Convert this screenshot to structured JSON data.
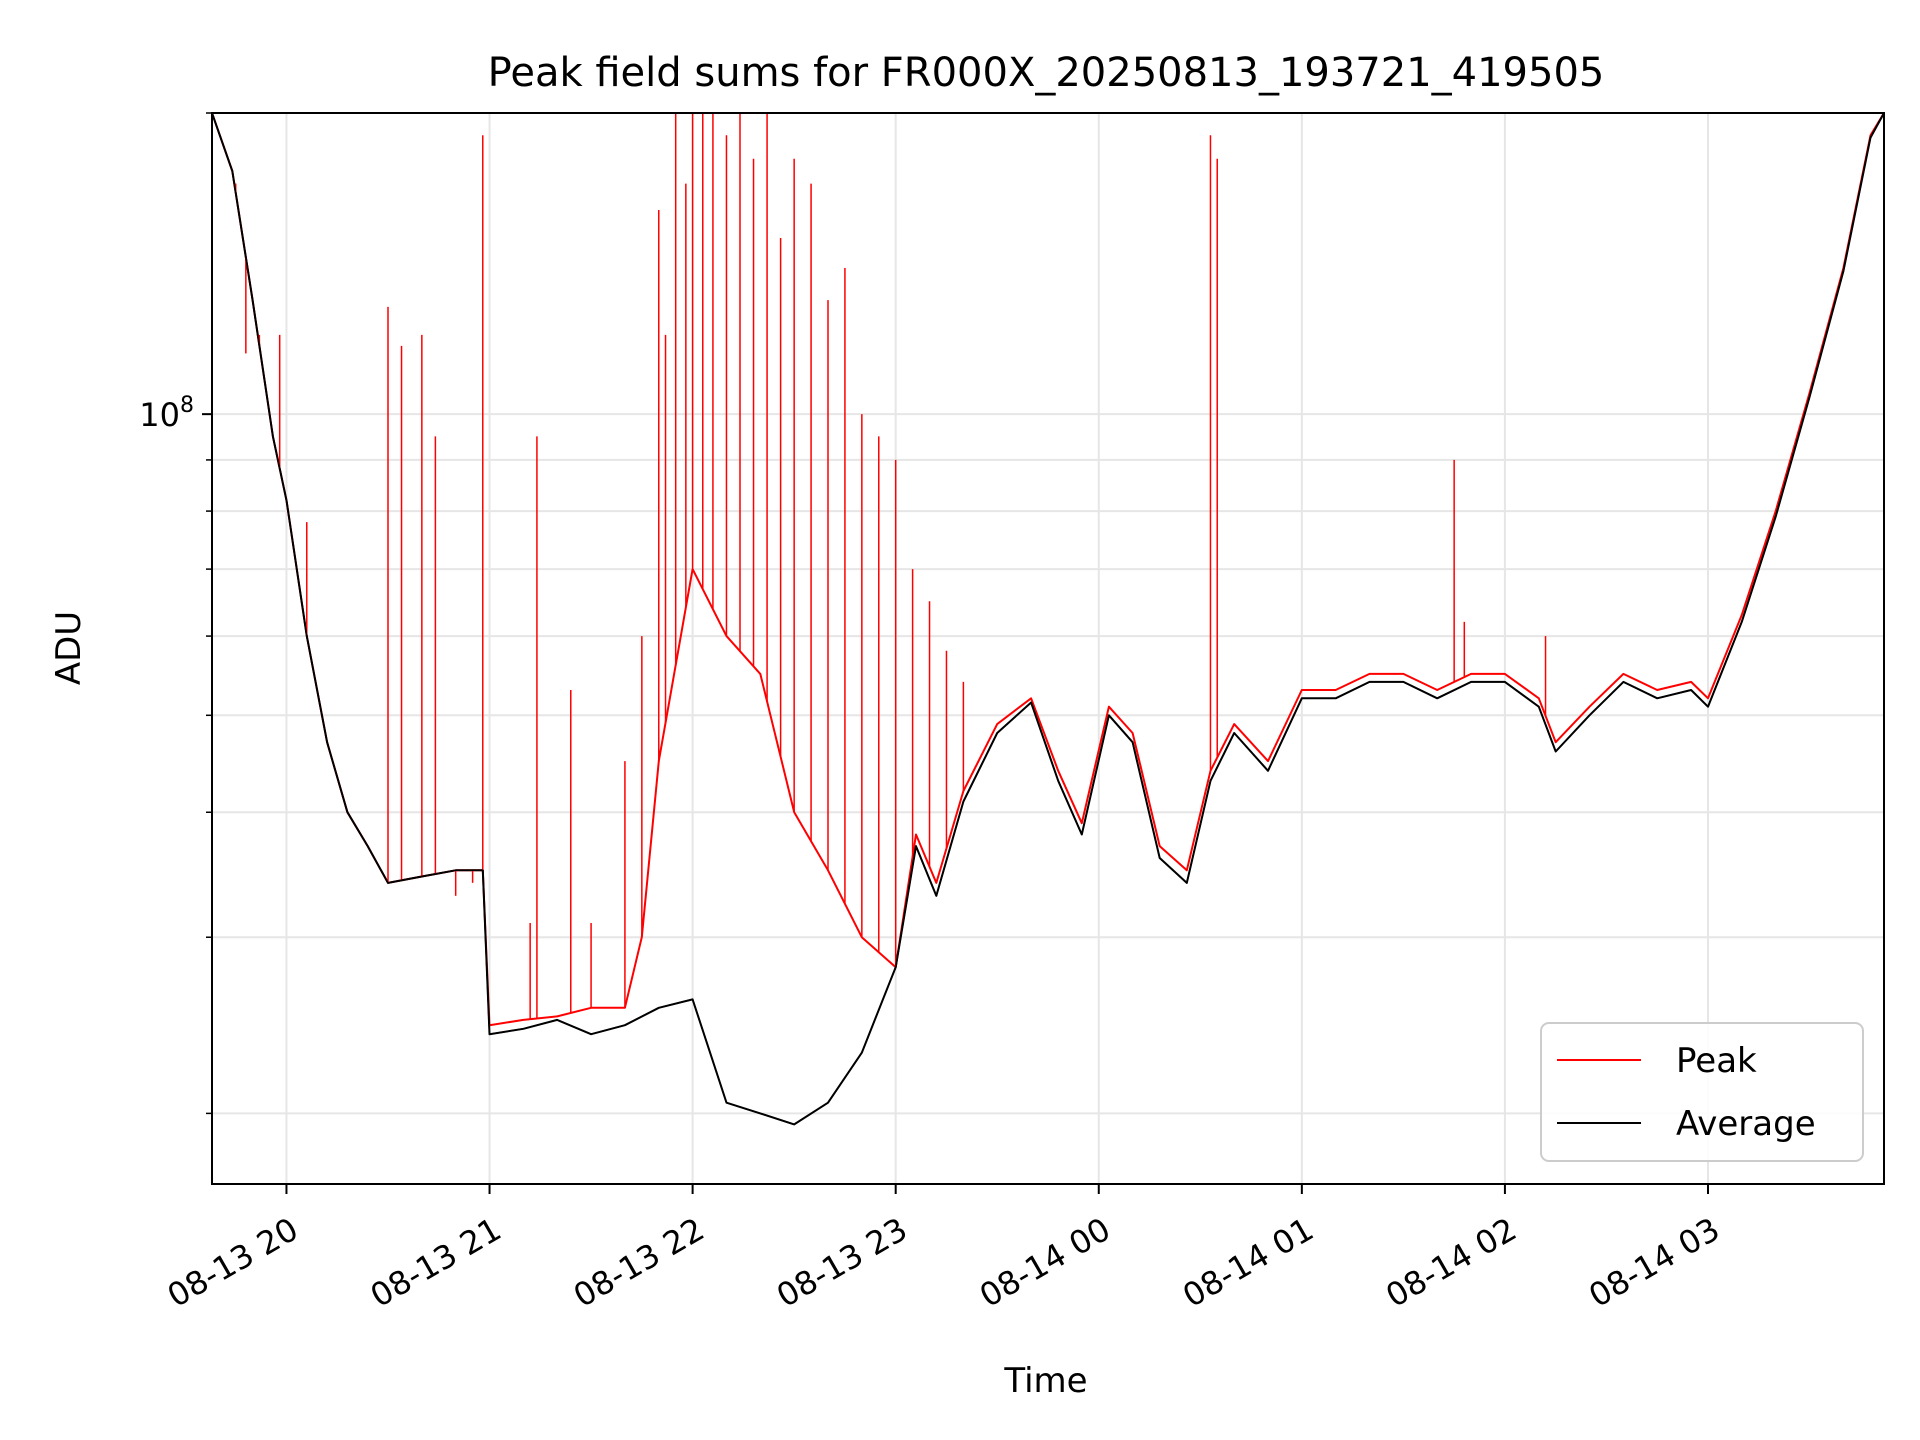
{
  "chart_data": {
    "type": "line",
    "title": "Peak field sums for FR000X_20250813_193721_419505",
    "xlabel": "Time",
    "ylabel": "ADU",
    "yscale": "log",
    "x_tick_labels": [
      "08-13 20",
      "08-13 21",
      "08-13 22",
      "08-13 23",
      "08-14 00",
      "08-14 01",
      "08-14 02",
      "08-14 03"
    ],
    "y_tick_labels": [
      {
        "base": "10",
        "exp": "8"
      }
    ],
    "xlim": [
      "2025-08-13 19:38",
      "2025-08-14 03:52"
    ],
    "ylim": [
      17000000,
      200000000
    ],
    "grid": true,
    "legend": "lower-right",
    "series": [
      {
        "name": "Peak",
        "color": "#ff0000",
        "x": [
          "2025-08-13 19:38",
          "2025-08-13 19:44",
          "2025-08-13 19:50",
          "2025-08-13 19:56",
          "2025-08-13 20:00",
          "2025-08-13 20:06",
          "2025-08-13 20:12",
          "2025-08-13 20:18",
          "2025-08-13 20:24",
          "2025-08-13 20:30",
          "2025-08-13 20:40",
          "2025-08-13 20:50",
          "2025-08-13 20:58",
          "2025-08-13 21:00",
          "2025-08-13 21:10",
          "2025-08-13 21:20",
          "2025-08-13 21:30",
          "2025-08-13 21:40",
          "2025-08-13 21:45",
          "2025-08-13 21:50",
          "2025-08-13 22:00",
          "2025-08-13 22:10",
          "2025-08-13 22:20",
          "2025-08-13 22:30",
          "2025-08-13 22:40",
          "2025-08-13 22:50",
          "2025-08-13 23:00",
          "2025-08-13 23:06",
          "2025-08-13 23:12",
          "2025-08-13 23:20",
          "2025-08-13 23:30",
          "2025-08-13 23:40",
          "2025-08-13 23:48",
          "2025-08-13 23:55",
          "2025-08-14 00:03",
          "2025-08-14 00:10",
          "2025-08-14 00:18",
          "2025-08-14 00:26",
          "2025-08-14 00:33",
          "2025-08-14 00:40",
          "2025-08-14 00:50",
          "2025-08-14 01:00",
          "2025-08-14 01:10",
          "2025-08-14 01:20",
          "2025-08-14 01:30",
          "2025-08-14 01:40",
          "2025-08-14 01:50",
          "2025-08-14 02:00",
          "2025-08-14 02:10",
          "2025-08-14 02:15",
          "2025-08-14 02:25",
          "2025-08-14 02:35",
          "2025-08-14 02:45",
          "2025-08-14 02:55",
          "2025-08-14 03:00",
          "2025-08-14 03:10",
          "2025-08-14 03:20",
          "2025-08-14 03:30",
          "2025-08-14 03:40",
          "2025-08-14 03:48",
          "2025-08-14 03:52"
        ],
        "values": [
          200000000,
          175000000,
          130000000,
          95000000,
          82000000,
          60000000,
          47000000,
          40000000,
          37000000,
          34000000,
          34500000,
          35000000,
          35000000,
          24500000,
          24800000,
          25000000,
          25500000,
          25500000,
          30000000,
          45000000,
          70000000,
          60000000,
          55000000,
          40000000,
          35000000,
          30000000,
          28000000,
          38000000,
          34000000,
          42000000,
          49000000,
          52000000,
          44000000,
          39000000,
          51000000,
          48000000,
          37000000,
          35000000,
          44000000,
          49000000,
          45000000,
          53000000,
          53000000,
          55000000,
          55000000,
          53000000,
          55000000,
          55000000,
          52000000,
          47000000,
          51000000,
          55000000,
          53000000,
          54000000,
          52000000,
          63000000,
          80000000,
          105000000,
          140000000,
          190000000,
          200000000
        ]
      },
      {
        "name": "Average",
        "color": "#000000",
        "x": [
          "2025-08-13 19:38",
          "2025-08-13 19:44",
          "2025-08-13 19:50",
          "2025-08-13 19:56",
          "2025-08-13 20:00",
          "2025-08-13 20:06",
          "2025-08-13 20:12",
          "2025-08-13 20:18",
          "2025-08-13 20:24",
          "2025-08-13 20:30",
          "2025-08-13 20:40",
          "2025-08-13 20:50",
          "2025-08-13 20:58",
          "2025-08-13 21:00",
          "2025-08-13 21:10",
          "2025-08-13 21:20",
          "2025-08-13 21:30",
          "2025-08-13 21:40",
          "2025-08-13 21:50",
          "2025-08-13 22:00",
          "2025-08-13 22:10",
          "2025-08-13 22:20",
          "2025-08-13 22:30",
          "2025-08-13 22:40",
          "2025-08-13 22:50",
          "2025-08-13 23:00",
          "2025-08-13 23:06",
          "2025-08-13 23:12",
          "2025-08-13 23:20",
          "2025-08-13 23:30",
          "2025-08-13 23:40",
          "2025-08-13 23:48",
          "2025-08-13 23:55",
          "2025-08-14 00:03",
          "2025-08-14 00:10",
          "2025-08-14 00:18",
          "2025-08-14 00:26",
          "2025-08-14 00:33",
          "2025-08-14 00:40",
          "2025-08-14 00:50",
          "2025-08-14 01:00",
          "2025-08-14 01:10",
          "2025-08-14 01:20",
          "2025-08-14 01:30",
          "2025-08-14 01:40",
          "2025-08-14 01:50",
          "2025-08-14 02:00",
          "2025-08-14 02:10",
          "2025-08-14 02:15",
          "2025-08-14 02:25",
          "2025-08-14 02:35",
          "2025-08-14 02:45",
          "2025-08-14 02:55",
          "2025-08-14 03:00",
          "2025-08-14 03:10",
          "2025-08-14 03:20",
          "2025-08-14 03:30",
          "2025-08-14 03:40",
          "2025-08-14 03:48",
          "2025-08-14 03:52"
        ],
        "values": [
          200000000,
          175000000,
          130000000,
          95000000,
          82000000,
          60000000,
          47000000,
          40000000,
          37000000,
          34000000,
          34500000,
          35000000,
          35000000,
          24000000,
          24300000,
          24800000,
          24000000,
          24500000,
          25500000,
          26000000,
          20500000,
          20000000,
          19500000,
          20500000,
          23000000,
          28000000,
          37000000,
          33000000,
          41000000,
          48000000,
          51500000,
          43000000,
          38000000,
          50000000,
          47000000,
          36000000,
          34000000,
          43000000,
          48000000,
          44000000,
          52000000,
          52000000,
          54000000,
          54000000,
          52000000,
          54000000,
          54000000,
          51000000,
          46000000,
          50000000,
          54000000,
          52000000,
          53000000,
          51000000,
          62000000,
          79000000,
          104000000,
          139000000,
          189000000,
          200000000
        ]
      }
    ],
    "spikes": {
      "series": "Peak",
      "x": [
        "2025-08-13 19:45",
        "2025-08-13 19:48",
        "2025-08-13 19:52",
        "2025-08-13 19:58",
        "2025-08-13 20:06",
        "2025-08-13 20:30",
        "2025-08-13 20:34",
        "2025-08-13 20:40",
        "2025-08-13 20:44",
        "2025-08-13 20:50",
        "2025-08-13 20:55",
        "2025-08-13 20:58",
        "2025-08-13 21:12",
        "2025-08-13 21:14",
        "2025-08-13 21:24",
        "2025-08-13 21:30",
        "2025-08-13 21:40",
        "2025-08-13 21:45",
        "2025-08-13 21:50",
        "2025-08-13 21:52",
        "2025-08-13 21:55",
        "2025-08-13 21:58",
        "2025-08-13 22:00",
        "2025-08-13 22:03",
        "2025-08-13 22:06",
        "2025-08-13 22:10",
        "2025-08-13 22:14",
        "2025-08-13 22:18",
        "2025-08-13 22:22",
        "2025-08-13 22:26",
        "2025-08-13 22:30",
        "2025-08-13 22:35",
        "2025-08-13 22:40",
        "2025-08-13 22:45",
        "2025-08-13 22:50",
        "2025-08-13 22:55",
        "2025-08-13 23:00",
        "2025-08-13 23:05",
        "2025-08-13 23:10",
        "2025-08-13 23:15",
        "2025-08-13 23:20",
        "2025-08-14 00:33",
        "2025-08-14 00:35",
        "2025-08-14 01:45",
        "2025-08-14 01:48",
        "2025-08-14 02:12"
      ],
      "values": [
        170000000,
        115000000,
        120000000,
        120000000,
        78000000,
        128000000,
        117000000,
        120000000,
        95000000,
        33000000,
        34000000,
        190000000,
        31000000,
        95000000,
        53000000,
        31000000,
        45000000,
        60000000,
        160000000,
        120000000,
        200000000,
        170000000,
        200000000,
        200000000,
        200000000,
        190000000,
        200000000,
        180000000,
        200000000,
        150000000,
        180000000,
        170000000,
        130000000,
        140000000,
        100000000,
        95000000,
        90000000,
        70000000,
        65000000,
        58000000,
        54000000,
        190000000,
        180000000,
        90000000,
        62000000,
        60000000
      ]
    }
  }
}
